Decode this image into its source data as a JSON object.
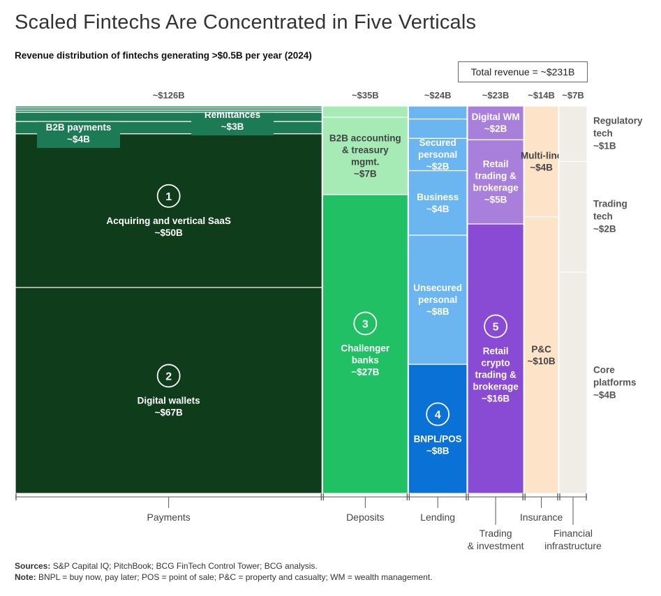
{
  "title": "Scaled Fintechs Are Concentrated in Five Verticals",
  "subtitle": "Revenue distribution of fintechs generating >$0.5B per year (2024)",
  "total_revenue": "Total revenue = ~$231B",
  "footnotes": {
    "sources_label": "Sources:",
    "sources": " S&P Capital IQ; PitchBook; BCG FinTech Control Tower; BCG analysis.",
    "note_label": "Note:",
    "note": " BNPL = buy now, pay later; POS = point of sale; P&C = property and casualty; WM = wealth management."
  },
  "chart_data": {
    "type": "marimekko",
    "unit": "$B",
    "total": 231,
    "columns": [
      {
        "name": "Payments",
        "total": 126,
        "total_label": "~$126B",
        "segments": [
          {
            "label": "Digital wallets",
            "value_label": "~$67B",
            "value": 67,
            "badge": "2",
            "color": "#0f3d1c",
            "text": "#ffffff"
          },
          {
            "label": "Acquiring and vertical SaaS",
            "value_label": "~$50B",
            "value": 50,
            "badge": "1",
            "color": "#0f3d1c",
            "text": "#ffffff"
          },
          {
            "label": "B2B payments",
            "value_label": "~$4B",
            "value": 4,
            "color": "#1c7a55",
            "text": "#ffffff"
          },
          {
            "label": "Remittances",
            "value_label": "~$3B",
            "value": 3,
            "color": "#1c7a55",
            "text": "#ffffff"
          },
          {
            "label": "",
            "value": 0.7,
            "color": "#1c7a55"
          },
          {
            "label": "",
            "value": 0.7,
            "color": "#1c7a55"
          },
          {
            "label": "",
            "value": 0.6,
            "color": "#1c7a55"
          }
        ]
      },
      {
        "name": "Deposits",
        "total": 35,
        "total_label": "~$35B",
        "segments": [
          {
            "label": "Challenger banks",
            "value_label": "~$27B",
            "value": 27,
            "badge": "3",
            "color": "#22c064",
            "text": "#ffffff"
          },
          {
            "label": "B2B accounting & treasury mgmt.",
            "value_label": "~$7B",
            "value": 7,
            "color": "#a6ebb6",
            "text": "#444444"
          },
          {
            "label": "",
            "value": 1,
            "color": "#a6ebb6"
          }
        ]
      },
      {
        "name": "Lending",
        "total": 24,
        "total_label": "~$24B",
        "segments": [
          {
            "label": "BNPL/POS",
            "value_label": "~$8B",
            "value": 8,
            "badge": "4",
            "color": "#0a72d6",
            "text": "#ffffff"
          },
          {
            "label": "Unsecured personal",
            "value_label": "~$8B",
            "value": 8,
            "color": "#6bb6f1",
            "text": "#ffffff"
          },
          {
            "label": "Business",
            "value_label": "~$4B",
            "value": 4,
            "color": "#6bb6f1",
            "text": "#ffffff"
          },
          {
            "label": "Secured personal",
            "value_label": "~$2B",
            "value": 2,
            "color": "#6bb6f1",
            "text": "#ffffff"
          },
          {
            "label": "",
            "value": 1.2,
            "color": "#6bb6f1"
          },
          {
            "label": "",
            "value": 0.8,
            "color": "#6bb6f1"
          }
        ]
      },
      {
        "name": "Trading & investment",
        "total": 23,
        "total_label": "~$23B",
        "segments": [
          {
            "label": "Retail crypto trading & brokerage",
            "value_label": "~$16B",
            "value": 16,
            "badge": "5",
            "color": "#8a4bd4",
            "text": "#ffffff"
          },
          {
            "label": "Retail trading & brokerage",
            "value_label": "~$5B",
            "value": 5,
            "color": "#a97fdc",
            "text": "#ffffff"
          },
          {
            "label": "Digital WM",
            "value_label": "~$2B",
            "value": 2,
            "color": "#a97fdc",
            "text": "#ffffff"
          }
        ]
      },
      {
        "name": "Insurance",
        "total": 14,
        "total_label": "~$14B",
        "segments": [
          {
            "label": "P&C",
            "value_label": "~$10B",
            "value": 10,
            "color": "#fde3c8",
            "text": "#444444"
          },
          {
            "label": "Multi-line",
            "value_label": "~$4B",
            "value": 4,
            "color": "#fde3c8",
            "text": "#444444"
          }
        ]
      },
      {
        "name": "Financial infrastructure",
        "total": 7,
        "total_label": "~$7B",
        "segments": [
          {
            "label": "Core platforms",
            "value_label": "~$4B",
            "value": 4,
            "color": "#f0ece6",
            "outside": true
          },
          {
            "label": "Trading tech",
            "value_label": "~$2B",
            "value": 2,
            "color": "#f0ece6",
            "outside": true
          },
          {
            "label": "Regulatory tech",
            "value_label": "~$1B",
            "value": 1,
            "color": "#f0ece6",
            "outside": true
          }
        ]
      }
    ]
  }
}
